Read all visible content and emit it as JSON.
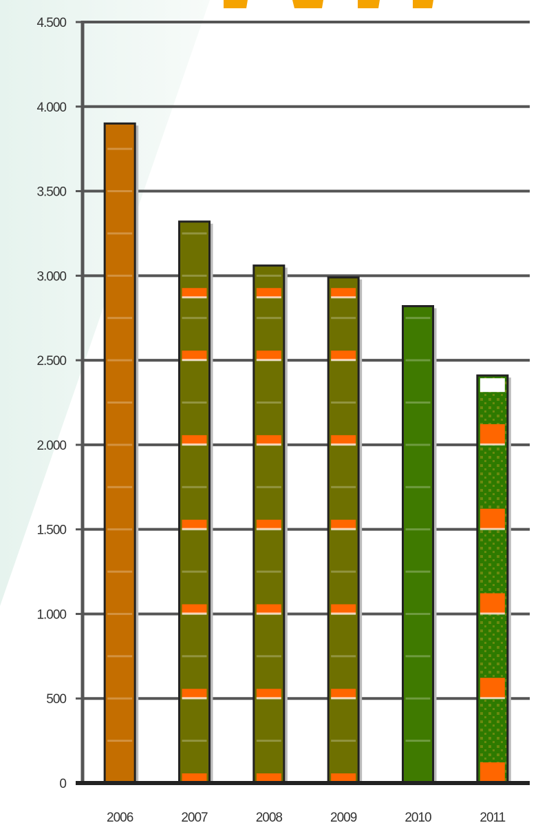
{
  "chart_data": {
    "type": "bar",
    "title": "",
    "xlabel": "",
    "ylabel": "",
    "categories": [
      "2006",
      "2007",
      "2008",
      "2009",
      "2010",
      "2011"
    ],
    "values": [
      3900,
      3320,
      3060,
      2990,
      2820,
      2410
    ],
    "ylim": [
      0,
      4500
    ],
    "yticks": [
      0,
      500,
      1000,
      1500,
      2000,
      2500,
      3000,
      3500,
      4000,
      4500
    ],
    "ytick_labels": [
      "0",
      "500",
      "1.000",
      "1.500",
      "2.000",
      "2.500",
      "3.000",
      "3.500",
      "4.000",
      "4.500"
    ],
    "grid": true,
    "bar_colors": [
      "#c46e00",
      "#6e7000",
      "#6e7000",
      "#6e7000",
      "#3f7a00",
      "#2e7a00"
    ],
    "band_color": "#ff6600",
    "top_cap_color": "#ffffff"
  }
}
